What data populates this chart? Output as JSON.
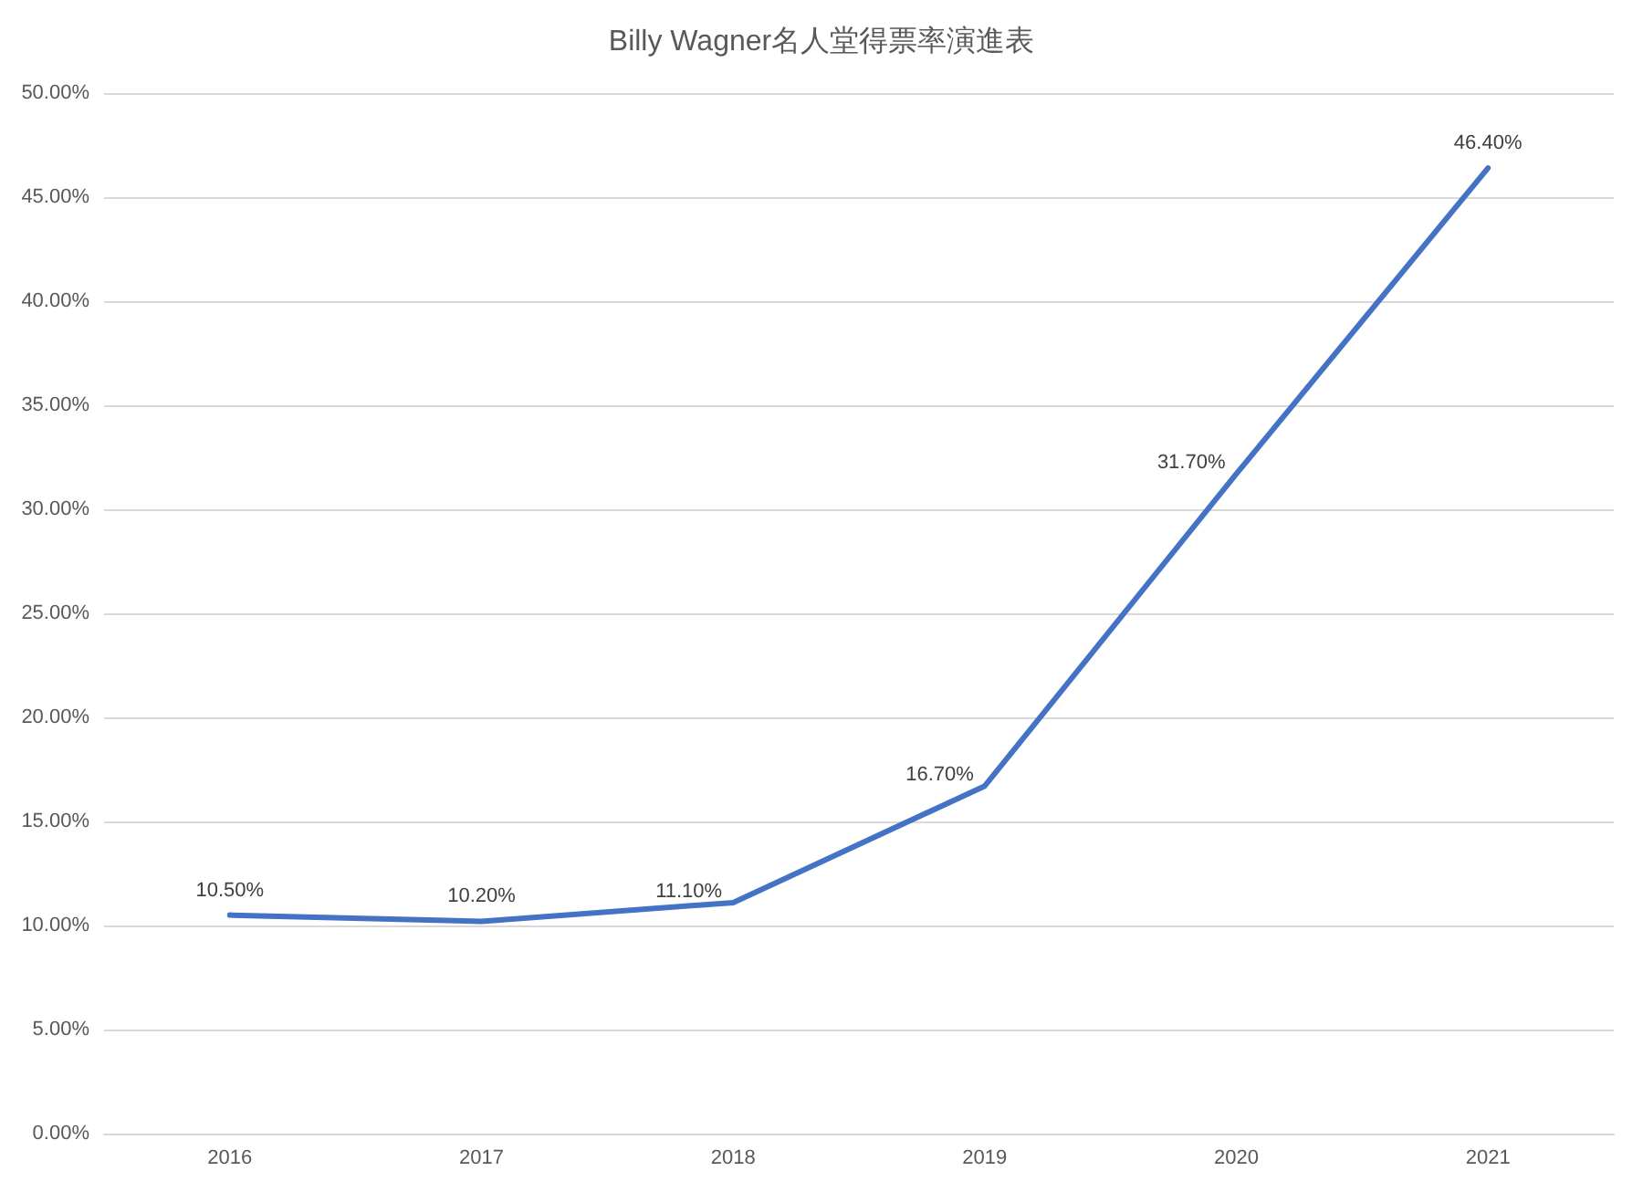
{
  "chart_data": {
    "type": "line",
    "title": "Billy Wagner名人堂得票率演進表",
    "categories": [
      "2016",
      "2017",
      "2018",
      "2019",
      "2020",
      "2021"
    ],
    "series": [
      {
        "color": "#4472c4",
        "values": [
          10.5,
          10.2,
          11.1,
          16.7,
          31.7,
          46.4
        ],
        "value_labels": [
          "10.50%",
          "10.20%",
          "11.10%",
          "16.70%",
          "31.70%",
          "46.40%"
        ]
      }
    ],
    "ylim": [
      0,
      50
    ],
    "yticks": [
      {
        "value": 0,
        "label": "0.00%"
      },
      {
        "value": 5,
        "label": "5.00%"
      },
      {
        "value": 10,
        "label": "10.00%"
      },
      {
        "value": 15,
        "label": "15.00%"
      },
      {
        "value": 20,
        "label": "20.00%"
      },
      {
        "value": 25,
        "label": "25.00%"
      },
      {
        "value": 30,
        "label": "30.00%"
      },
      {
        "value": 35,
        "label": "35.00%"
      },
      {
        "value": 40,
        "label": "40.00%"
      },
      {
        "value": 45,
        "label": "45.00%"
      },
      {
        "value": 50,
        "label": "50.00%"
      }
    ],
    "grid": "y",
    "marker": "none",
    "line_style": "solid"
  }
}
